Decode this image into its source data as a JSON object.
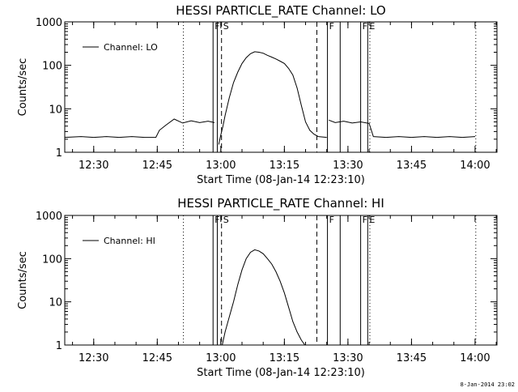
{
  "chart_data": [
    {
      "type": "line",
      "title": "HESSI PARTICLE_RATE Channel: LO",
      "xlabel": "Start Time (08-Jan-14 12:23:10)",
      "ylabel": "Counts/sec",
      "y_scale": "log",
      "ylim": [
        1,
        1000
      ],
      "xlim": [
        "12:23:10",
        "14:05:10"
      ],
      "x_ticks": [
        "12:30",
        "12:45",
        "13:00",
        "13:15",
        "13:30",
        "13:45",
        "14:00"
      ],
      "y_ticks": [
        "1",
        "10",
        "100",
        "1000"
      ],
      "legend": {
        "position": "top-left",
        "entries": [
          "Channel: LO"
        ]
      },
      "markers": [
        {
          "time": "12:58:10",
          "style": "solid",
          "label": "F"
        },
        {
          "time": "12:59:10",
          "style": "solid",
          "label": ""
        },
        {
          "time": "13:00:10",
          "style": "dashed",
          "label": "S"
        },
        {
          "time": "13:22:40",
          "style": "dashed",
          "label": ""
        },
        {
          "time": "13:25:10",
          "style": "solid",
          "label": "F"
        },
        {
          "time": "13:28:10",
          "style": "solid",
          "label": ""
        },
        {
          "time": "13:33:00",
          "style": "solid",
          "label": "F"
        },
        {
          "time": "13:34:40",
          "style": "solid",
          "label": "E"
        },
        {
          "time": "13:35:10",
          "style": "dotted",
          "label": ""
        },
        {
          "time": "12:51:10",
          "style": "dotted",
          "label": ""
        },
        {
          "time": "14:00:10",
          "style": "dotted",
          "label": ""
        }
      ],
      "series": [
        {
          "name": "Channel: LO",
          "segments": [
            {
              "x": [
                "12:23:10",
                "12:27:00",
                "12:30:00",
                "12:33:00",
                "12:36:00",
                "12:39:00",
                "12:42:00",
                "12:44:40",
                "12:45:30",
                "12:47:00",
                "12:49:00",
                "12:51:00",
                "12:53:00",
                "12:55:00",
                "12:57:00",
                "12:58:30"
              ],
              "y": [
                2.2,
                2.3,
                2.2,
                2.3,
                2.2,
                2.3,
                2.2,
                2.2,
                3.2,
                4.2,
                5.8,
                4.7,
                5.3,
                4.8,
                5.2,
                4.8
              ]
            },
            {
              "x": [
                "12:59:30",
                "13:00:00",
                "13:00:30",
                "13:01:00",
                "13:02:00",
                "13:03:00",
                "13:04:00",
                "13:05:00",
                "13:06:00",
                "13:07:00",
                "13:08:00",
                "13:09:00",
                "13:10:00",
                "13:11:00",
                "13:12:00",
                "13:13:00",
                "13:14:00",
                "13:15:00",
                "13:16:00",
                "13:17:00",
                "13:18:00",
                "13:19:00",
                "13:20:00",
                "13:21:00",
                "13:22:00",
                "13:23:00",
                "13:25:00"
              ],
              "y": [
                1.5,
                2.5,
                4,
                7,
                18,
                40,
                70,
                110,
                150,
                185,
                205,
                200,
                190,
                170,
                155,
                140,
                125,
                110,
                85,
                60,
                30,
                12,
                5,
                3.2,
                2.6,
                2.3,
                2.2
              ]
            },
            {
              "x": [
                "13:25:30",
                "13:27:00",
                "13:29:00",
                "13:31:00",
                "13:33:00",
                "13:35:00",
                "13:36:00",
                "13:39:00",
                "13:42:00",
                "13:45:00",
                "13:48:00",
                "13:51:00",
                "13:54:00",
                "13:57:00",
                "14:00:00"
              ],
              "y": [
                5.5,
                4.8,
                5.2,
                4.7,
                5.0,
                4.6,
                2.3,
                2.2,
                2.3,
                2.2,
                2.3,
                2.2,
                2.3,
                2.2,
                2.3
              ]
            }
          ]
        }
      ]
    },
    {
      "type": "line",
      "title": "HESSI PARTICLE_RATE Channel: HI",
      "xlabel": "Start Time (08-Jan-14 12:23:10)",
      "ylabel": "Counts/sec",
      "y_scale": "log",
      "ylim": [
        1,
        1000
      ],
      "xlim": [
        "12:23:10",
        "14:05:10"
      ],
      "x_ticks": [
        "12:30",
        "12:45",
        "13:00",
        "13:15",
        "13:30",
        "13:45",
        "14:00"
      ],
      "y_ticks": [
        "1",
        "10",
        "100",
        "1000"
      ],
      "legend": {
        "position": "top-left",
        "entries": [
          "Channel: HI"
        ]
      },
      "markers": [
        {
          "time": "12:58:10",
          "style": "solid",
          "label": "F"
        },
        {
          "time": "12:59:10",
          "style": "solid",
          "label": ""
        },
        {
          "time": "13:00:10",
          "style": "dashed",
          "label": "S"
        },
        {
          "time": "13:22:40",
          "style": "dashed",
          "label": ""
        },
        {
          "time": "13:25:10",
          "style": "solid",
          "label": "F"
        },
        {
          "time": "13:28:10",
          "style": "solid",
          "label": ""
        },
        {
          "time": "13:33:00",
          "style": "solid",
          "label": "F"
        },
        {
          "time": "13:34:40",
          "style": "solid",
          "label": "E"
        },
        {
          "time": "13:35:10",
          "style": "dotted",
          "label": ""
        },
        {
          "time": "12:51:10",
          "style": "dotted",
          "label": ""
        },
        {
          "time": "14:00:10",
          "style": "dotted",
          "label": ""
        }
      ],
      "series": [
        {
          "name": "Channel: HI",
          "segments": [
            {
              "x": [
                "13:00:20",
                "13:01:00",
                "13:02:00",
                "13:03:00",
                "13:04:00",
                "13:05:00",
                "13:06:00",
                "13:07:00",
                "13:08:00",
                "13:09:00",
                "13:10:00",
                "13:11:00",
                "13:12:00",
                "13:13:00",
                "13:14:00",
                "13:15:00",
                "13:16:00",
                "13:17:00",
                "13:18:00",
                "13:19:00",
                "13:19:50"
              ],
              "y": [
                1,
                2,
                4.5,
                10,
                25,
                55,
                100,
                140,
                160,
                150,
                130,
                100,
                75,
                50,
                30,
                16,
                7.5,
                3.5,
                2,
                1.3,
                1
              ]
            }
          ]
        }
      ]
    }
  ],
  "footer_text": "8-Jan-2014 23:02"
}
